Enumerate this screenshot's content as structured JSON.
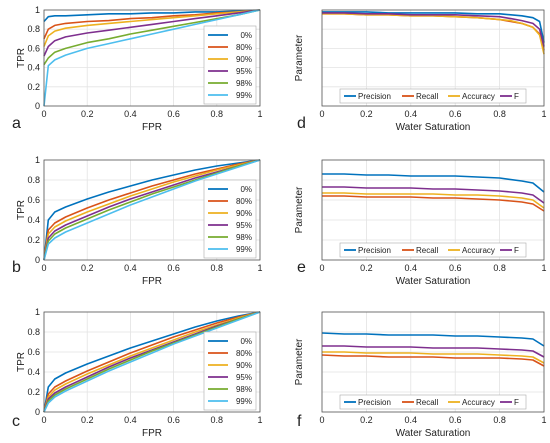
{
  "figure": {
    "panel_letters": [
      "a",
      "b",
      "c",
      "d",
      "e",
      "f"
    ]
  },
  "colors": {
    "0%": "#0072BD",
    "80%": "#D95319",
    "90%": "#EDB120",
    "95%": "#7E2F8E",
    "98%": "#77AC30",
    "99%": "#4DBEEE",
    "Precision": "#0072BD",
    "Recall": "#D95319",
    "Accuracy": "#EDB120",
    "F": "#7E2F8E"
  },
  "chart_data": [
    {
      "panel": "a",
      "type": "line",
      "xlabel": "FPR",
      "ylabel": "TPR",
      "xlim": [
        0,
        1
      ],
      "ylim": [
        0,
        1
      ],
      "xticks": [
        "0",
        "0.2",
        "0.4",
        "0.6",
        "0.8",
        "1"
      ],
      "yticks": [
        "0",
        "0.2",
        "0.4",
        "0.6",
        "0.8",
        "1"
      ],
      "grid": true,
      "legend": "bottom-right",
      "x": [
        0,
        0.02,
        0.05,
        0.1,
        0.2,
        0.3,
        0.4,
        0.5,
        0.6,
        0.7,
        0.8,
        0.9,
        1
      ],
      "series": [
        {
          "name": "0%",
          "values": [
            0.88,
            0.93,
            0.94,
            0.94,
            0.95,
            0.96,
            0.96,
            0.97,
            0.97,
            0.98,
            0.98,
            0.99,
            1
          ]
        },
        {
          "name": "80%",
          "values": [
            0.7,
            0.8,
            0.84,
            0.86,
            0.88,
            0.89,
            0.91,
            0.92,
            0.94,
            0.95,
            0.97,
            0.98,
            1
          ]
        },
        {
          "name": "90%",
          "values": [
            0.62,
            0.73,
            0.78,
            0.81,
            0.84,
            0.86,
            0.88,
            0.9,
            0.92,
            0.94,
            0.96,
            0.98,
            1
          ]
        },
        {
          "name": "95%",
          "values": [
            0.52,
            0.62,
            0.68,
            0.72,
            0.76,
            0.79,
            0.82,
            0.85,
            0.88,
            0.91,
            0.94,
            0.97,
            1
          ]
        },
        {
          "name": "98%",
          "values": [
            0.43,
            0.5,
            0.56,
            0.6,
            0.66,
            0.7,
            0.75,
            0.79,
            0.83,
            0.87,
            0.91,
            0.95,
            1
          ]
        },
        {
          "name": "99%",
          "values": [
            0.0,
            0.42,
            0.48,
            0.53,
            0.6,
            0.65,
            0.7,
            0.75,
            0.8,
            0.85,
            0.9,
            0.95,
            1
          ]
        }
      ]
    },
    {
      "panel": "b",
      "type": "line",
      "xlabel": "FPR",
      "ylabel": "TPR",
      "xlim": [
        0,
        1
      ],
      "ylim": [
        0,
        1
      ],
      "xticks": [
        "0",
        "0.2",
        "0.4",
        "0.6",
        "0.8",
        "1"
      ],
      "yticks": [
        "0",
        "0.2",
        "0.4",
        "0.6",
        "0.8",
        "1"
      ],
      "grid": true,
      "legend": "bottom-right",
      "x": [
        0,
        0.02,
        0.05,
        0.1,
        0.2,
        0.3,
        0.4,
        0.5,
        0.6,
        0.7,
        0.8,
        0.9,
        1
      ],
      "series": [
        {
          "name": "0%",
          "values": [
            0.0,
            0.4,
            0.48,
            0.53,
            0.61,
            0.68,
            0.74,
            0.8,
            0.85,
            0.9,
            0.94,
            0.97,
            1
          ]
        },
        {
          "name": "80%",
          "values": [
            0.0,
            0.3,
            0.37,
            0.43,
            0.52,
            0.6,
            0.67,
            0.74,
            0.8,
            0.86,
            0.91,
            0.96,
            1
          ]
        },
        {
          "name": "90%",
          "values": [
            0.0,
            0.26,
            0.33,
            0.39,
            0.48,
            0.56,
            0.64,
            0.71,
            0.78,
            0.84,
            0.9,
            0.95,
            1
          ]
        },
        {
          "name": "95%",
          "values": [
            0.0,
            0.22,
            0.29,
            0.35,
            0.44,
            0.53,
            0.61,
            0.68,
            0.75,
            0.82,
            0.88,
            0.94,
            1
          ]
        },
        {
          "name": "98%",
          "values": [
            0.0,
            0.19,
            0.26,
            0.32,
            0.41,
            0.5,
            0.58,
            0.66,
            0.73,
            0.8,
            0.87,
            0.94,
            1
          ]
        },
        {
          "name": "99%",
          "values": [
            0.0,
            0.16,
            0.22,
            0.28,
            0.37,
            0.46,
            0.55,
            0.63,
            0.71,
            0.79,
            0.86,
            0.93,
            1
          ]
        }
      ]
    },
    {
      "panel": "c",
      "type": "line",
      "xlabel": "FPR",
      "ylabel": "TPR",
      "xlim": [
        0,
        1
      ],
      "ylim": [
        0,
        1
      ],
      "xticks": [
        "0",
        "0.2",
        "0.4",
        "0.6",
        "0.8",
        "1"
      ],
      "yticks": [
        "0",
        "0.2",
        "0.4",
        "0.6",
        "0.8",
        "1"
      ],
      "grid": true,
      "legend": "bottom-right",
      "x": [
        0,
        0.02,
        0.05,
        0.1,
        0.2,
        0.3,
        0.4,
        0.5,
        0.6,
        0.7,
        0.8,
        0.9,
        1
      ],
      "series": [
        {
          "name": "0%",
          "values": [
            0.0,
            0.25,
            0.33,
            0.39,
            0.48,
            0.56,
            0.64,
            0.71,
            0.78,
            0.85,
            0.91,
            0.96,
            1
          ]
        },
        {
          "name": "80%",
          "values": [
            0.0,
            0.18,
            0.25,
            0.31,
            0.41,
            0.5,
            0.59,
            0.67,
            0.75,
            0.82,
            0.89,
            0.95,
            1
          ]
        },
        {
          "name": "90%",
          "values": [
            0.0,
            0.15,
            0.22,
            0.28,
            0.38,
            0.47,
            0.56,
            0.64,
            0.72,
            0.8,
            0.87,
            0.94,
            1
          ]
        },
        {
          "name": "95%",
          "values": [
            0.0,
            0.13,
            0.19,
            0.25,
            0.35,
            0.45,
            0.54,
            0.62,
            0.7,
            0.78,
            0.86,
            0.93,
            1
          ]
        },
        {
          "name": "98%",
          "values": [
            0.0,
            0.11,
            0.17,
            0.23,
            0.33,
            0.43,
            0.52,
            0.61,
            0.69,
            0.77,
            0.85,
            0.93,
            1
          ]
        },
        {
          "name": "99%",
          "values": [
            0.0,
            0.09,
            0.15,
            0.21,
            0.31,
            0.41,
            0.5,
            0.59,
            0.68,
            0.76,
            0.84,
            0.92,
            1
          ]
        }
      ]
    },
    {
      "panel": "d",
      "type": "line",
      "xlabel": "Water Saturation",
      "ylabel": "Parameter",
      "xlim": [
        0,
        1
      ],
      "ylim": [
        0,
        1
      ],
      "xticks": [
        "0",
        "0.2",
        "0.4",
        "0.6",
        "0.8",
        "1"
      ],
      "yticks": [],
      "grid": true,
      "legend": "bottom",
      "x": [
        0,
        0.1,
        0.2,
        0.3,
        0.4,
        0.5,
        0.6,
        0.7,
        0.8,
        0.85,
        0.9,
        0.95,
        0.98,
        1
      ],
      "series": [
        {
          "name": "Precision",
          "values": [
            0.98,
            0.98,
            0.98,
            0.97,
            0.97,
            0.97,
            0.97,
            0.96,
            0.96,
            0.95,
            0.94,
            0.92,
            0.88,
            0.66
          ]
        },
        {
          "name": "Recall",
          "values": [
            0.96,
            0.96,
            0.95,
            0.95,
            0.94,
            0.94,
            0.93,
            0.92,
            0.9,
            0.88,
            0.86,
            0.82,
            0.75,
            0.58
          ]
        },
        {
          "name": "Accuracy",
          "values": [
            0.96,
            0.96,
            0.95,
            0.95,
            0.94,
            0.94,
            0.93,
            0.92,
            0.9,
            0.89,
            0.86,
            0.82,
            0.74,
            0.54
          ]
        },
        {
          "name": "F",
          "values": [
            0.97,
            0.97,
            0.96,
            0.96,
            0.95,
            0.95,
            0.95,
            0.94,
            0.93,
            0.91,
            0.89,
            0.86,
            0.8,
            0.62
          ]
        }
      ]
    },
    {
      "panel": "e",
      "type": "line",
      "xlabel": "Water Saturation",
      "ylabel": "Parameter",
      "xlim": [
        0,
        1
      ],
      "ylim": [
        0,
        1
      ],
      "xticks": [
        "0",
        "0.2",
        "0.4",
        "0.6",
        "0.8",
        "1"
      ],
      "yticks": [],
      "grid": true,
      "legend": "bottom",
      "x": [
        0,
        0.1,
        0.2,
        0.3,
        0.4,
        0.5,
        0.6,
        0.7,
        0.8,
        0.9,
        0.95,
        1
      ],
      "series": [
        {
          "name": "Precision",
          "values": [
            0.86,
            0.86,
            0.85,
            0.85,
            0.84,
            0.84,
            0.84,
            0.83,
            0.82,
            0.79,
            0.77,
            0.68
          ]
        },
        {
          "name": "Recall",
          "values": [
            0.64,
            0.64,
            0.63,
            0.63,
            0.63,
            0.62,
            0.62,
            0.61,
            0.6,
            0.58,
            0.56,
            0.49
          ]
        },
        {
          "name": "Accuracy",
          "values": [
            0.67,
            0.67,
            0.66,
            0.66,
            0.66,
            0.66,
            0.65,
            0.65,
            0.64,
            0.62,
            0.6,
            0.52
          ]
        },
        {
          "name": "F",
          "values": [
            0.73,
            0.73,
            0.72,
            0.72,
            0.72,
            0.71,
            0.71,
            0.7,
            0.69,
            0.67,
            0.65,
            0.57
          ]
        }
      ]
    },
    {
      "panel": "f",
      "type": "line",
      "xlabel": "Water Saturation",
      "ylabel": "Parameter",
      "xlim": [
        0,
        1
      ],
      "ylim": [
        0,
        1
      ],
      "xticks": [
        "0",
        "0.2",
        "0.4",
        "0.6",
        "0.8",
        "1"
      ],
      "yticks": [],
      "grid": true,
      "legend": "bottom",
      "x": [
        0,
        0.1,
        0.2,
        0.3,
        0.4,
        0.5,
        0.6,
        0.7,
        0.8,
        0.9,
        0.95,
        1
      ],
      "series": [
        {
          "name": "Precision",
          "values": [
            0.79,
            0.78,
            0.78,
            0.77,
            0.77,
            0.77,
            0.76,
            0.76,
            0.75,
            0.74,
            0.73,
            0.66
          ]
        },
        {
          "name": "Recall",
          "values": [
            0.57,
            0.56,
            0.56,
            0.55,
            0.55,
            0.55,
            0.54,
            0.54,
            0.54,
            0.53,
            0.52,
            0.46
          ]
        },
        {
          "name": "Accuracy",
          "values": [
            0.6,
            0.6,
            0.59,
            0.59,
            0.59,
            0.58,
            0.58,
            0.58,
            0.57,
            0.56,
            0.55,
            0.49
          ]
        },
        {
          "name": "F",
          "values": [
            0.66,
            0.66,
            0.65,
            0.65,
            0.65,
            0.64,
            0.64,
            0.64,
            0.63,
            0.62,
            0.61,
            0.55
          ]
        }
      ]
    }
  ]
}
